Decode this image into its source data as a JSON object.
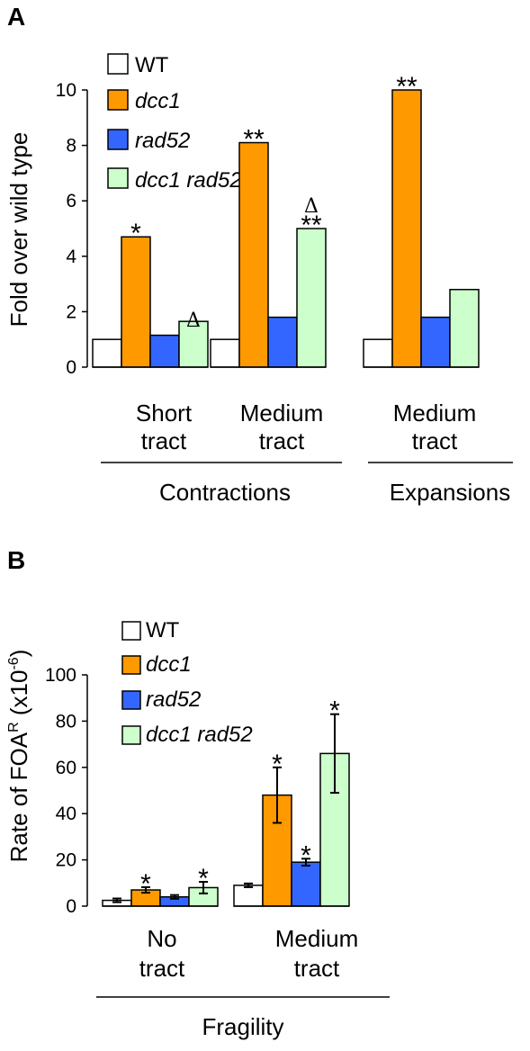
{
  "colors": {
    "WT": "#ffffff",
    "dcc1": "#ff9900",
    "rad52": "#3366ff",
    "dcc1 rad52": "#ccffcc",
    "stroke": "#000000"
  },
  "chart_data": [
    {
      "panel": "A",
      "type": "bar",
      "ylabel": "Fold over wild type",
      "ylim": [
        0,
        10
      ],
      "yticks": [
        0,
        2,
        4,
        6,
        8,
        10
      ],
      "legend": [
        "WT",
        "dcc1",
        "rad52",
        "dcc1 rad52"
      ],
      "legend_position": "top-left",
      "groups": [
        {
          "label_lines": [
            "Short",
            "tract"
          ],
          "values": [
            1,
            4.7,
            1.15,
            1.65
          ],
          "annotations": [
            "",
            "*",
            "",
            "Δ"
          ]
        },
        {
          "label_lines": [
            "Medium",
            "tract"
          ],
          "values": [
            1,
            8.1,
            1.8,
            5.0
          ],
          "annotations": [
            "",
            "**",
            "",
            "Δ\n**"
          ]
        },
        {
          "label_lines": [
            "Medium",
            "tract"
          ],
          "values": [
            1,
            10,
            1.8,
            2.8
          ],
          "annotations": [
            "",
            "**",
            "",
            ""
          ]
        }
      ],
      "supergroups": [
        {
          "label": "Contractions",
          "groups": [
            0,
            1
          ]
        },
        {
          "label": "Expansions",
          "groups": [
            2
          ]
        }
      ]
    },
    {
      "panel": "B",
      "type": "bar",
      "ylabel": "Rate of FOA",
      "ylabel_sup": "R",
      "ylabel_unit": " (x10",
      "ylabel_unit_sup": "-6",
      "ylabel_end": ")",
      "ylim": [
        0,
        100
      ],
      "yticks": [
        0,
        20,
        40,
        60,
        80,
        100
      ],
      "legend": [
        "WT",
        "dcc1",
        "rad52",
        "dcc1 rad52"
      ],
      "legend_position": "top-left",
      "groups": [
        {
          "label_lines": [
            "No",
            "tract"
          ],
          "values": [
            2.5,
            7,
            4,
            8
          ],
          "errors": [
            0.8,
            1.2,
            0.8,
            2.5
          ],
          "annotations": [
            "",
            "*",
            "",
            "*"
          ]
        },
        {
          "label_lines": [
            "Medium",
            "tract"
          ],
          "values": [
            9,
            48,
            19,
            66
          ],
          "errors": [
            0.8,
            12,
            1.5,
            17
          ],
          "annotations": [
            "",
            "*",
            "*",
            "*"
          ]
        }
      ],
      "supergroups": [
        {
          "label": "Fragility",
          "groups": [
            0,
            1
          ]
        }
      ]
    }
  ]
}
